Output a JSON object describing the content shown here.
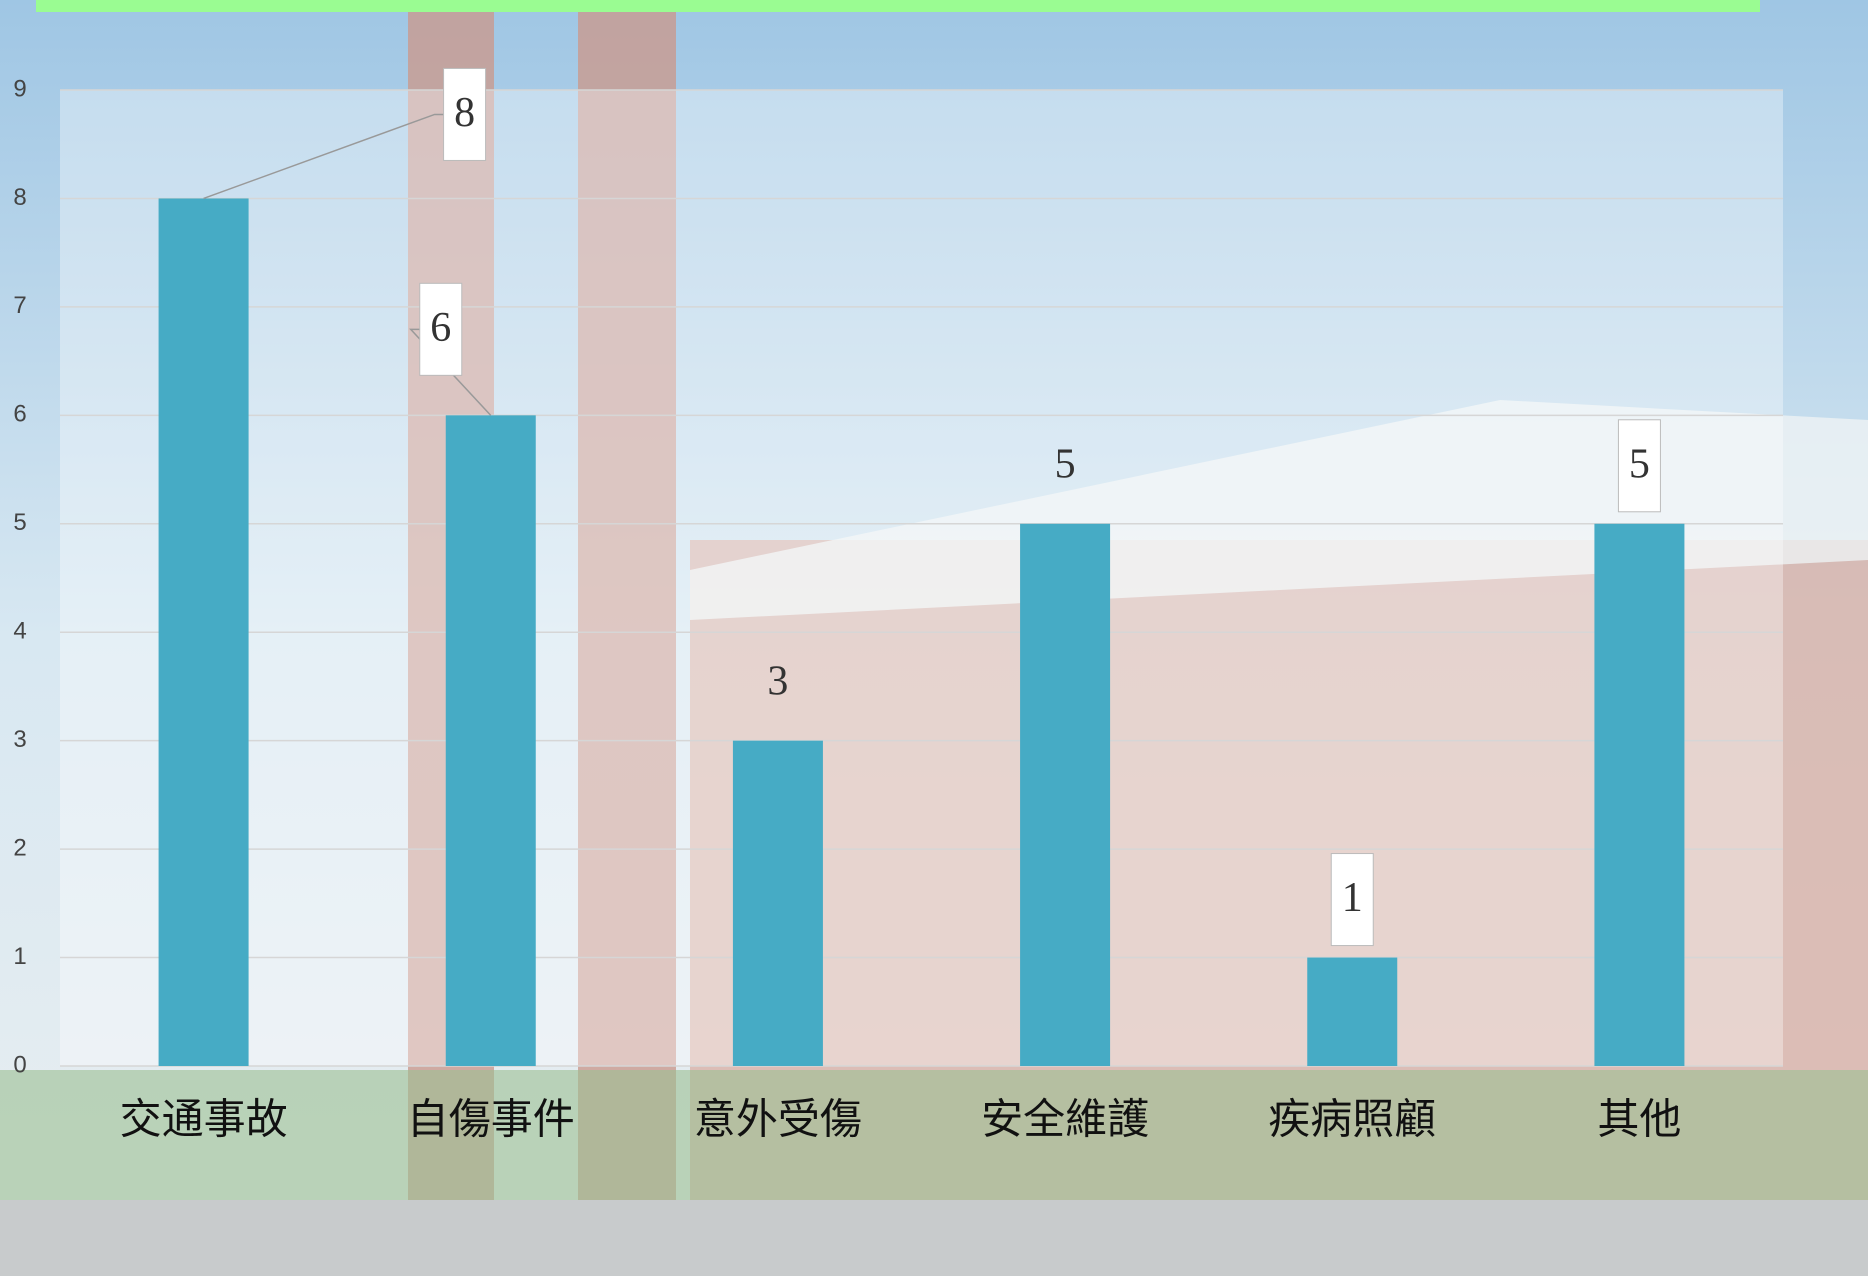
{
  "chart_data": {
    "type": "bar",
    "categories": [
      "交通事故",
      "自傷事件",
      "意外受傷",
      "安全維護",
      "疾病照顧",
      "其他"
    ],
    "values": [
      8,
      6,
      3,
      5,
      1,
      5
    ],
    "color": "#46abc5",
    "ylim": [
      0,
      9
    ],
    "yticks": [
      0,
      1,
      2,
      3,
      4,
      5,
      6,
      7,
      8,
      9
    ],
    "grid": true
  }
}
